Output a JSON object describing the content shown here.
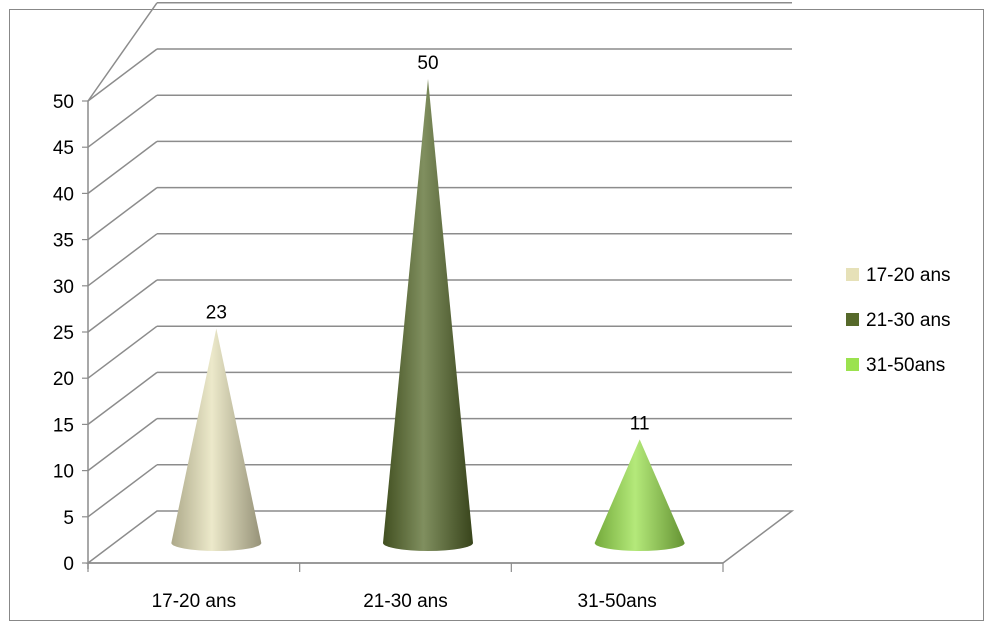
{
  "chart_data": {
    "type": "bar",
    "bar_shape": "cone-3d",
    "title": "",
    "xlabel": "",
    "ylabel": "",
    "categories": [
      "17-20 ans",
      "21-30 ans",
      "31-50ans"
    ],
    "values": [
      23,
      50,
      11
    ],
    "data_labels": [
      "23",
      "50",
      "11"
    ],
    "colors": [
      "#e6e1b8",
      "#56692a",
      "#9be24e"
    ],
    "ylim": [
      0,
      50
    ],
    "yticks": [
      0,
      5,
      10,
      15,
      20,
      25,
      30,
      35,
      40,
      45,
      50
    ],
    "ytick_labels": [
      "0",
      "5",
      "10",
      "15",
      "20",
      "25",
      "30",
      "35",
      "40",
      "45",
      "50"
    ],
    "grid": true,
    "legend": {
      "position": "right",
      "entries": [
        "17-20 ans",
        "21-30 ans",
        "31-50ans"
      ]
    }
  }
}
